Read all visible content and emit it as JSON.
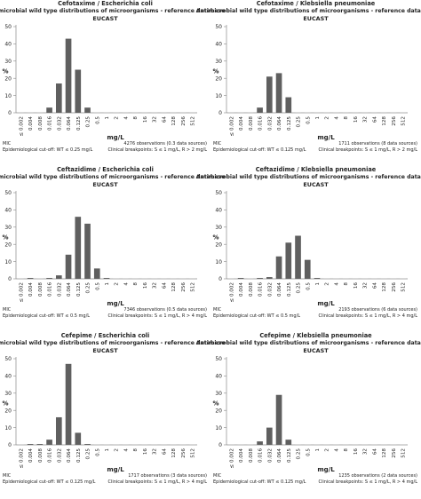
{
  "chart_data": [
    {
      "type": "bar",
      "title": "Cefotaxime / Escherichia coli",
      "subtitle": "Antimicrobial wild type distributions of microorganisms - reference database",
      "source": "EUCAST",
      "xlabel": "mg/L",
      "ylabel": "%",
      "ylim": [
        0,
        50
      ],
      "yticks": [
        0,
        10,
        20,
        30,
        40,
        50
      ],
      "categories": [
        "≤ 0.002",
        "0.004",
        "0.008",
        "0.016",
        "0.032",
        "0.064",
        "0.125",
        "0.25",
        "0.5",
        "1",
        "2",
        "4",
        "8",
        "16",
        "32",
        "64",
        "128",
        "256",
        "512"
      ],
      "values": [
        0,
        0,
        0,
        3,
        17,
        43,
        25,
        3,
        0,
        0,
        0,
        0,
        0,
        0,
        0,
        0,
        0,
        0,
        0
      ],
      "observations": "4276 observations (0.3 data sources)",
      "footer_left": [
        "MIC",
        "Epidemiological cut-off: WT ≤ 0.25 mg/L"
      ],
      "footer_right": "Clinical breakpoints: S ≤ 1 mg/L, R > 2 mg/L"
    },
    {
      "type": "bar",
      "title": "Cefotaxime / Klebsiella pneumoniae",
      "subtitle": "Antimicrobial wild type distributions of microorganisms - reference database",
      "source": "EUCAST",
      "xlabel": "mg/L",
      "ylabel": "%",
      "ylim": [
        0,
        50
      ],
      "yticks": [
        0,
        10,
        20,
        30,
        40,
        50
      ],
      "categories": [
        "≤ 0.002",
        "0.004",
        "0.008",
        "0.016",
        "0.032",
        "0.064",
        "0.125",
        "0.25",
        "0.5",
        "1",
        "2",
        "4",
        "8",
        "16",
        "32",
        "64",
        "128",
        "256",
        "512"
      ],
      "values": [
        0,
        0,
        0,
        3,
        21,
        23,
        9,
        0,
        0,
        0,
        0,
        0,
        0,
        0,
        0,
        0,
        0,
        0,
        0
      ],
      "observations": "1711 observations (8 data sources)",
      "footer_left": [
        "MIC",
        "Epidemiological cut-off: WT ≤ 0.125 mg/L"
      ],
      "footer_right": "Clinical breakpoints: S ≤ 1 mg/L, R > 2 mg/L"
    },
    {
      "type": "bar",
      "title": "Ceftazidime / Escherichia coli",
      "subtitle": "Antimicrobial wild type distributions of microorganisms - reference database",
      "source": "EUCAST",
      "xlabel": "mg/L",
      "ylabel": "%",
      "ylim": [
        0,
        50
      ],
      "yticks": [
        0,
        10,
        20,
        30,
        40,
        50
      ],
      "categories": [
        "≤ 0.002",
        "0.004",
        "0.008",
        "0.016",
        "0.032",
        "0.064",
        "0.125",
        "0.25",
        "0.5",
        "1",
        "2",
        "4",
        "8",
        "16",
        "32",
        "64",
        "128",
        "256",
        "512"
      ],
      "values": [
        0,
        0.5,
        0,
        0.5,
        2,
        14,
        36,
        32,
        6,
        0.5,
        0,
        0,
        0,
        0,
        0,
        0,
        0,
        0,
        0
      ],
      "observations": "7346 observations (0.5 data sources)",
      "footer_left": [
        "MIC",
        "Epidemiological cut-off: WT ≤ 0.5 mg/L"
      ],
      "footer_right": "Clinical breakpoints: S ≤ 1 mg/L, R > 4 mg/L"
    },
    {
      "type": "bar",
      "title": "Ceftazidime / Klebsiella pneumoniae",
      "subtitle": "Antimicrobial wild type distributions of microorganisms - reference database",
      "source": "EUCAST",
      "xlabel": "mg/L",
      "ylabel": "%",
      "ylim": [
        0,
        50
      ],
      "yticks": [
        0,
        10,
        20,
        30,
        40,
        50
      ],
      "categories": [
        "≤ 0.002",
        "0.004",
        "0.008",
        "0.016",
        "0.032",
        "0.064",
        "0.125",
        "0.25",
        "0.5",
        "1",
        "2",
        "4",
        "8",
        "16",
        "32",
        "64",
        "128",
        "256",
        "512"
      ],
      "values": [
        0,
        0.5,
        0,
        0.5,
        1,
        13,
        21,
        25,
        11,
        0.5,
        0,
        0,
        0,
        0,
        0,
        0,
        0,
        0,
        0
      ],
      "observations": "2193 observations (6 data sources)",
      "footer_left": [
        "MIC",
        "Epidemiological cut-off: WT ≤ 0.5 mg/L"
      ],
      "footer_right": "Clinical breakpoints: S ≤ 1 mg/L, R > 4 mg/L"
    },
    {
      "type": "bar",
      "title": "Cefepime / Escherichia coli",
      "subtitle": "Antimicrobial wild type distributions of microorganisms - reference database",
      "source": "EUCAST",
      "xlabel": "mg/L",
      "ylabel": "%",
      "ylim": [
        0,
        50
      ],
      "yticks": [
        0,
        10,
        20,
        30,
        40,
        50
      ],
      "categories": [
        "≤ 0.002",
        "0.004",
        "0.008",
        "0.016",
        "0.032",
        "0.064",
        "0.125",
        "0.25",
        "0.5",
        "1",
        "2",
        "4",
        "8",
        "16",
        "32",
        "64",
        "128",
        "256",
        "512"
      ],
      "values": [
        0,
        0.5,
        0.5,
        3,
        16,
        47,
        7,
        0.5,
        0,
        0,
        0,
        0,
        0,
        0,
        0,
        0,
        0,
        0,
        0
      ],
      "observations": "1717 observations (3 data sources)",
      "footer_left": [
        "MIC",
        "Epidemiological cut-off: WT ≤ 0.125 mg/L"
      ],
      "footer_right": "Clinical breakpoints: S ≤ 1 mg/L, R > 4 mg/L"
    },
    {
      "type": "bar",
      "title": "Cefepime / Klebsiella pneumoniae",
      "subtitle": "Antimicrobial wild type distributions of microorganisms - reference database",
      "source": "EUCAST",
      "xlabel": "mg/L",
      "ylabel": "%",
      "ylim": [
        0,
        50
      ],
      "yticks": [
        0,
        10,
        20,
        30,
        40,
        50
      ],
      "categories": [
        "≤ 0.002",
        "0.004",
        "0.008",
        "0.016",
        "0.032",
        "0.064",
        "0.125",
        "0.25",
        "0.5",
        "1",
        "2",
        "4",
        "8",
        "16",
        "32",
        "64",
        "128",
        "256",
        "512"
      ],
      "values": [
        0,
        0,
        0,
        2,
        10,
        29,
        3,
        0,
        0,
        0,
        0,
        0,
        0,
        0,
        0,
        0,
        0,
        0,
        0
      ],
      "observations": "1235 observations (2 data sources)",
      "footer_left": [
        "MIC",
        "Epidemiological cut-off: WT ≤ 0.125 mg/L"
      ],
      "footer_right": "Clinical breakpoints: S ≤ 1 mg/L, R > 4 mg/L"
    }
  ],
  "colors": {
    "bar": "#5f5f5f",
    "axis": "#888888",
    "text": "#222222"
  }
}
